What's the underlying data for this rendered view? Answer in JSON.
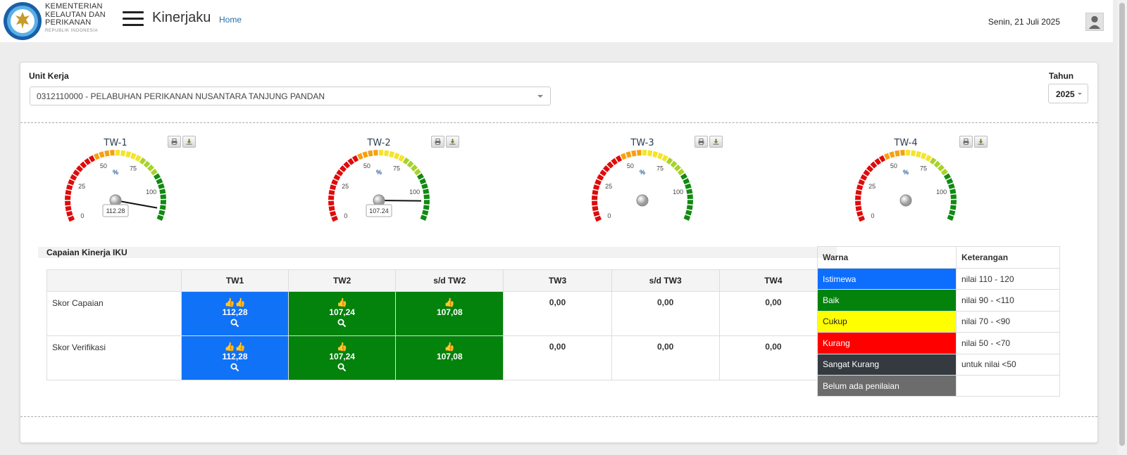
{
  "header": {
    "org_lines": [
      "KEMENTERIAN",
      "KELAUTAN DAN",
      "PERIKANAN"
    ],
    "org_sub": "REPUBLIK INDONESIA",
    "app_title": "Kinerjaku",
    "home_link": "Home",
    "date": "Senin, 21 Juli 2025"
  },
  "filters": {
    "unit_label": "Unit Kerja",
    "unit_value": "0312110000 - PELABUHAN PERIKANAN NUSANTARA TANJUNG PANDAN",
    "year_label": "Tahun",
    "year_value": "2025"
  },
  "gauges": [
    {
      "title": "TW-1",
      "value": 112.28,
      "value_label": "112.28"
    },
    {
      "title": "TW-2",
      "value": 107.24,
      "value_label": "107.24"
    },
    {
      "title": "TW-3",
      "value": null,
      "value_label": ""
    },
    {
      "title": "TW-4",
      "value": null,
      "value_label": ""
    }
  ],
  "gauge_scale": {
    "ticks": [
      "0",
      "25",
      "50",
      "75",
      "100"
    ],
    "unit": "%",
    "min": 0,
    "max": 120
  },
  "iku": {
    "section_title": "Capaian Kinerja IKU",
    "columns": [
      "",
      "TW1",
      "TW2",
      "s/d TW2",
      "TW3",
      "s/d TW3",
      "TW4"
    ],
    "rows": [
      {
        "label": "Skor Capaian",
        "cells": [
          {
            "value": "112,28",
            "color": "blue",
            "icon": "👍👍",
            "search": true
          },
          {
            "value": "107,24",
            "color": "green",
            "icon": "👍",
            "search": true
          },
          {
            "value": "107,08",
            "color": "green",
            "icon": "👍",
            "search": false
          },
          {
            "value": "0,00",
            "color": "",
            "icon": "",
            "search": false
          },
          {
            "value": "0,00",
            "color": "",
            "icon": "",
            "search": false
          },
          {
            "value": "0,00",
            "color": "",
            "icon": "",
            "search": false
          }
        ]
      },
      {
        "label": "Skor Verifikasi",
        "cells": [
          {
            "value": "112,28",
            "color": "blue",
            "icon": "👍👍",
            "search": true
          },
          {
            "value": "107,24",
            "color": "green",
            "icon": "👍",
            "search": true
          },
          {
            "value": "107,08",
            "color": "green",
            "icon": "👍",
            "search": false
          },
          {
            "value": "0,00",
            "color": "",
            "icon": "",
            "search": false
          },
          {
            "value": "0,00",
            "color": "",
            "icon": "",
            "search": false
          },
          {
            "value": "0,00",
            "color": "",
            "icon": "",
            "search": false
          }
        ]
      }
    ]
  },
  "legend": {
    "headers": [
      "Warna",
      "Keterangan"
    ],
    "items": [
      {
        "label": "Istimewa",
        "desc": "nilai 110 - 120",
        "color": "#0d6efd"
      },
      {
        "label": "Baik",
        "desc": "nilai 90 - <110",
        "color": "#03820c"
      },
      {
        "label": "Cukup",
        "desc": "nilai 70 - <90",
        "color": "#ffff00"
      },
      {
        "label": "Kurang",
        "desc": "nilai 50 - <70",
        "color": "#ff0000"
      },
      {
        "label": "Sangat Kurang",
        "desc": "untuk nilai <50",
        "color": "#343a40"
      },
      {
        "label": "Belum ada penilaian",
        "desc": "",
        "color": "#6c6c6c"
      }
    ]
  }
}
